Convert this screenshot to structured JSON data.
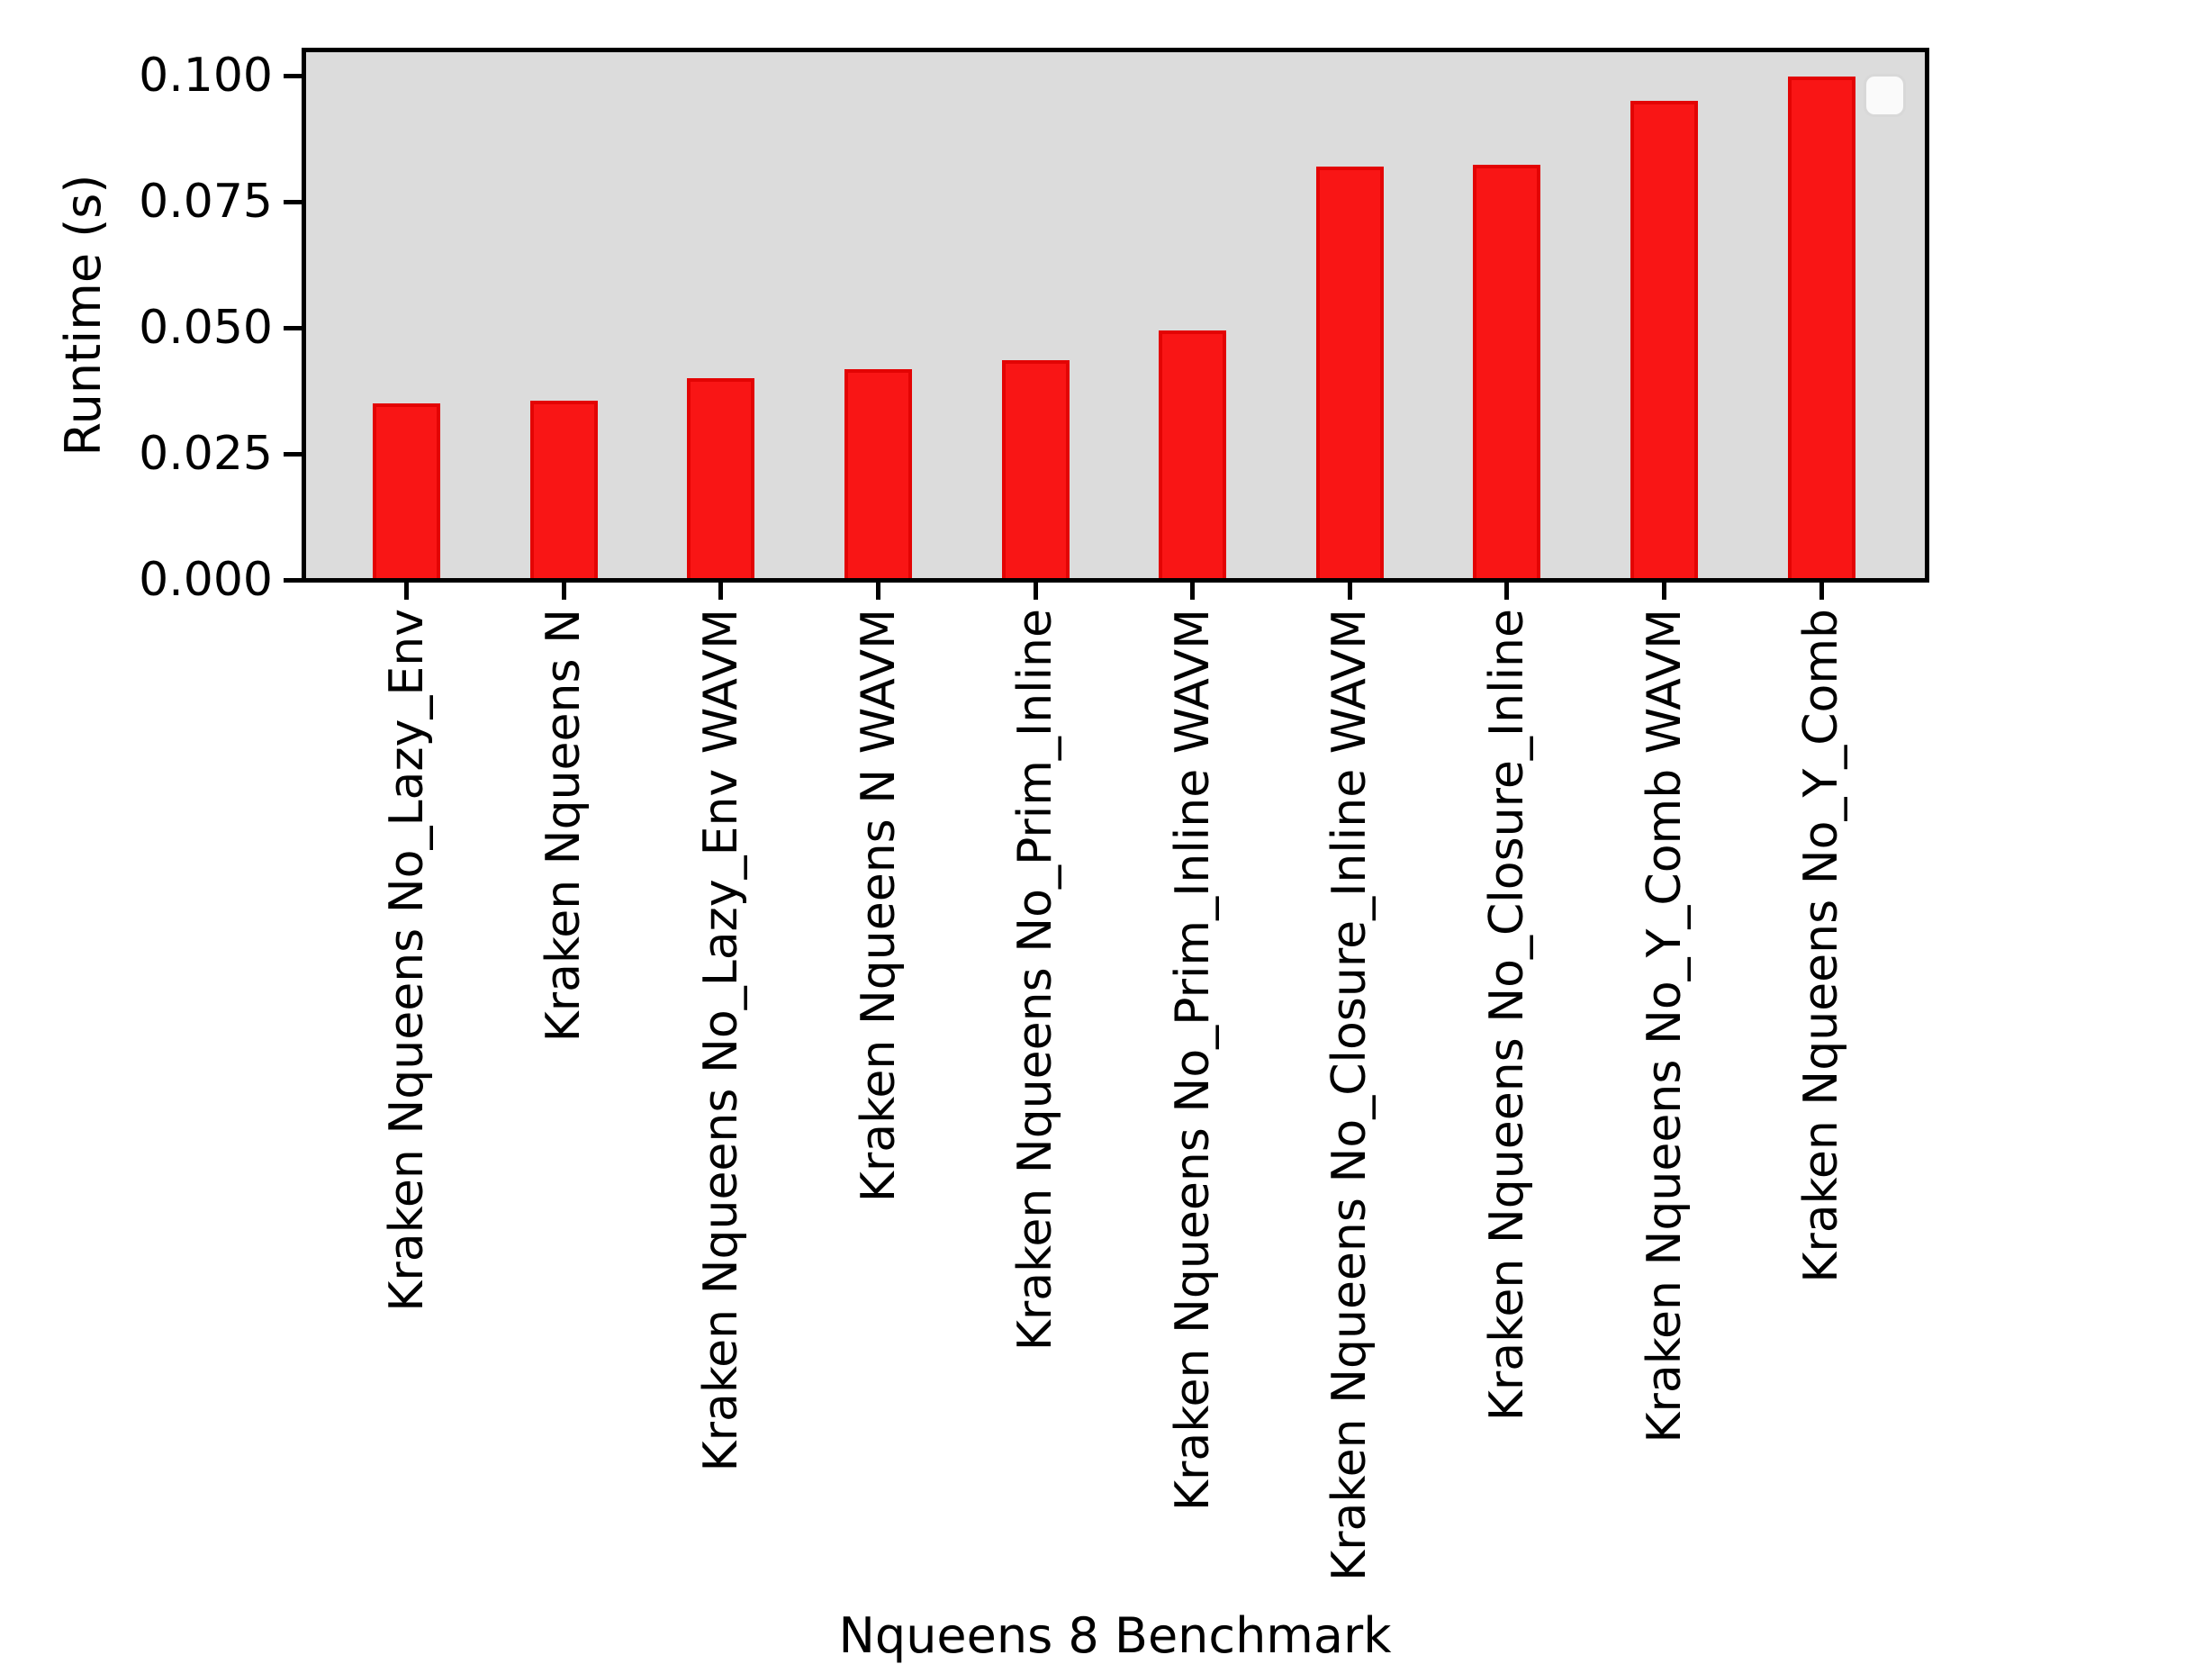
{
  "figure": {
    "background": "#ffffff"
  },
  "chart_data": {
    "type": "bar",
    "title": "",
    "xlabel": "Nqueens 8 Benchmark",
    "ylabel": "Runtime (s)",
    "categories": [
      "Kraken Nqueens No_Lazy_Env",
      "Kraken Nqueens N",
      "Kraken Nqueens No_Lazy_Env WAVM",
      "Kraken Nqueens N WAVM",
      "Kraken Nqueens No_Prim_Inline",
      "Kraken Nqueens No_Prim_Inline WAVM",
      "Kraken Nqueens No_Closure_Inline WAVM",
      "Kraken Nqueens No_Closure_Inline",
      "Kraken Nqueens No_Y_Comb WAVM",
      "Kraken Nqueens No_Y_Comb"
    ],
    "values": [
      0.035,
      0.0355,
      0.04,
      0.0418,
      0.0436,
      0.0495,
      0.082,
      0.0824,
      0.095,
      0.0999
    ],
    "ytick_values": [
      0.0,
      0.025,
      0.05,
      0.075,
      0.1
    ],
    "ytick_labels": [
      "0.000",
      "0.025",
      "0.050",
      "0.075",
      "0.100"
    ],
    "ylim": [
      0,
      0.1052
    ],
    "grid": false,
    "bar_color": "#f91515",
    "bar_edge_color": "#e30404",
    "plot_background": "#dcdcdc",
    "spine_color": "#000000",
    "legend": {
      "visible": true,
      "entries": [],
      "position": "upper-right"
    }
  }
}
